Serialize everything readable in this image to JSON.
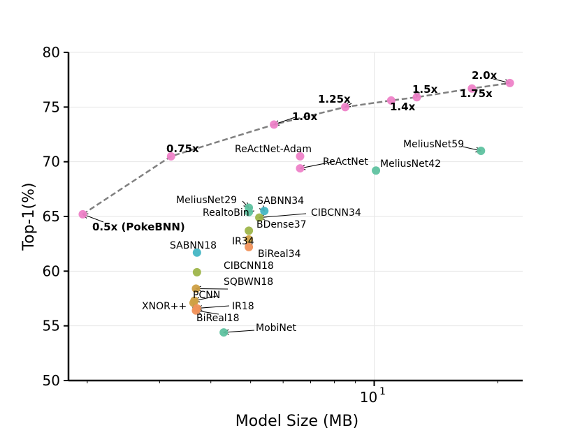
{
  "chart_data": {
    "type": "scatter",
    "title": "",
    "xlabel": "Model Size (MB)",
    "ylabel": "Top-1(%)",
    "x_scale": "log",
    "xlim": [
      1.8,
      23
    ],
    "ylim": [
      50,
      80
    ],
    "x_ticks": [
      {
        "value": 10,
        "base": "10",
        "exp": "1"
      }
    ],
    "y_ticks": [
      50,
      55,
      60,
      65,
      70,
      75,
      80
    ],
    "grid": true,
    "colors": {
      "pokebnn": "#ee82c8",
      "teal": "#5fc2a0",
      "blue": "#44b6c4",
      "olive": "#9eb54a",
      "gold": "#cfa044",
      "orange": "#f0915a",
      "trend": "#808080"
    },
    "pokebnn_series": {
      "style": "dashed",
      "points": [
        {
          "label": "0.5x (PokeBNN)",
          "x": 1.95,
          "y": 65.2
        },
        {
          "label": "0.75x",
          "x": 3.2,
          "y": 70.5
        },
        {
          "label": "1.0x",
          "x": 5.7,
          "y": 73.4
        },
        {
          "label": "1.25x",
          "x": 8.5,
          "y": 75.0
        },
        {
          "label": "1.4x",
          "x": 11.0,
          "y": 75.6
        },
        {
          "label": "1.5x",
          "x": 12.7,
          "y": 75.9
        },
        {
          "label": "1.75x",
          "x": 17.3,
          "y": 76.7
        },
        {
          "label": "2.0x",
          "x": 21.4,
          "y": 77.2
        }
      ]
    },
    "points": [
      {
        "label": "ReActNet-Adam",
        "x": 6.6,
        "y": 70.5,
        "color": "pokebnn"
      },
      {
        "label": "ReActNet",
        "x": 6.6,
        "y": 69.4,
        "color": "pokebnn"
      },
      {
        "label": "MeliusNet59",
        "x": 18.2,
        "y": 71.0,
        "color": "teal"
      },
      {
        "label": "MeliusNet42",
        "x": 10.1,
        "y": 69.2,
        "color": "teal"
      },
      {
        "label": "MeliusNet29",
        "x": 4.95,
        "y": 65.8,
        "color": "teal"
      },
      {
        "label": "SABNN34",
        "x": 5.4,
        "y": 65.5,
        "color": "blue"
      },
      {
        "label": "RealtoBin",
        "x": 4.95,
        "y": 65.4,
        "color": "teal"
      },
      {
        "label": "CIBCNN34",
        "x": 5.25,
        "y": 64.9,
        "color": "olive"
      },
      {
        "label": "BDense37",
        "x": 4.95,
        "y": 63.7,
        "color": "olive"
      },
      {
        "label": "IR34",
        "x": 4.95,
        "y": 62.9,
        "color": "gold"
      },
      {
        "label": "BiReal34",
        "x": 4.95,
        "y": 62.2,
        "color": "orange"
      },
      {
        "label": "SABNN18",
        "x": 3.7,
        "y": 61.7,
        "color": "blue"
      },
      {
        "label": "CIBCNN18",
        "x": 3.7,
        "y": 59.9,
        "color": "olive"
      },
      {
        "label": "SQBWN18",
        "x": 3.68,
        "y": 58.4,
        "color": "gold"
      },
      {
        "label": "PCNN",
        "x": 3.65,
        "y": 57.3,
        "color": "gold"
      },
      {
        "label": "XNOR++",
        "x": 3.63,
        "y": 57.1,
        "color": "gold"
      },
      {
        "label": "IR18",
        "x": 3.7,
        "y": 56.6,
        "color": "orange"
      },
      {
        "label": "BiReal18",
        "x": 3.68,
        "y": 56.4,
        "color": "orange"
      },
      {
        "label": "MobiNet",
        "x": 4.3,
        "y": 54.4,
        "color": "teal"
      }
    ]
  }
}
